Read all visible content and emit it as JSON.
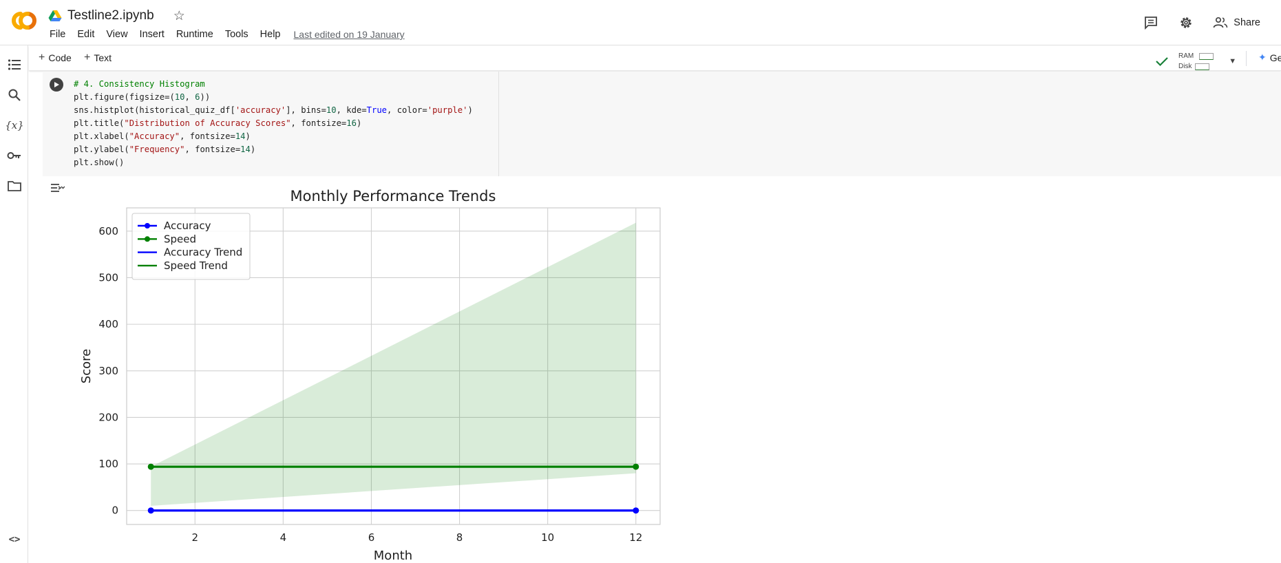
{
  "app": {
    "title": "Testline2.ipynb",
    "menu": [
      "File",
      "Edit",
      "View",
      "Insert",
      "Runtime",
      "Tools",
      "Help"
    ],
    "last_edited": "Last edited on 19 January",
    "share_label": "Share"
  },
  "toolbar": {
    "code_label": "Code",
    "text_label": "Text",
    "ram_label": "RAM",
    "disk_label": "Disk",
    "gemini_label": "Gemini"
  },
  "cell": {
    "lines": [
      "# 4. Consistency Histogram",
      "plt.figure(figsize=(10, 6))",
      "sns.histplot(historical_quiz_df['accuracy'], bins=10, kde=True, color='purple')",
      "plt.title(\"Distribution of Accuracy Scores\", fontsize=16)",
      "plt.xlabel(\"Accuracy\", fontsize=14)",
      "plt.ylabel(\"Frequency\", fontsize=14)",
      "plt.show()"
    ]
  },
  "chart_data": {
    "type": "line",
    "title": "Monthly Performance Trends",
    "xlabel": "Month",
    "ylabel": "Score",
    "xlim": [
      0.45,
      12.55
    ],
    "ylim": [
      -30,
      650
    ],
    "xticks": [
      2,
      4,
      6,
      8,
      10,
      12
    ],
    "yticks": [
      0,
      100,
      200,
      300,
      400,
      500,
      600
    ],
    "grid": true,
    "legend_position": "top-left",
    "legend": [
      "Accuracy",
      "Speed",
      "Accuracy Trend",
      "Speed Trend"
    ],
    "series": [
      {
        "name": "Accuracy",
        "color": "#0000ff",
        "markers": true,
        "x": [
          1,
          12
        ],
        "y": [
          0,
          0
        ]
      },
      {
        "name": "Speed",
        "color": "#008000",
        "markers": true,
        "x": [
          1,
          12
        ],
        "y": [
          94,
          94
        ]
      },
      {
        "name": "Accuracy Trend",
        "color": "#0000ff",
        "markers": false,
        "x": [
          1,
          12
        ],
        "y": [
          0,
          0
        ]
      },
      {
        "name": "Speed Trend",
        "color": "#008000",
        "markers": false,
        "x": [
          1,
          12
        ],
        "y": [
          94,
          94
        ]
      }
    ],
    "confidence_band": {
      "color": "#008000",
      "x": [
        1,
        12
      ],
      "lower": [
        10,
        80
      ],
      "upper": [
        94,
        618
      ]
    }
  }
}
